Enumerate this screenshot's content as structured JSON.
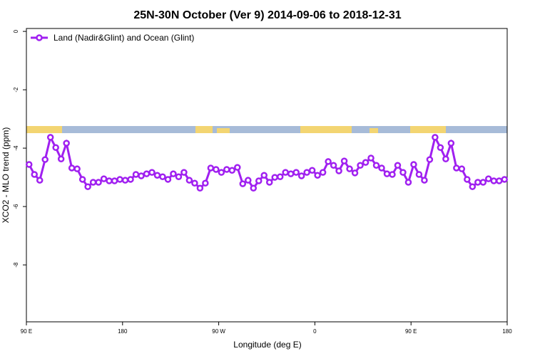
{
  "chart_data": {
    "type": "line",
    "title": "25N-30N October (Ver 9)   2014-09-06 to 2018-12-31",
    "xlabel": "Longitude (deg E)",
    "ylabel": "XCO2 - MLO trend (ppm)",
    "x": [
      92.5,
      97.5,
      102.5,
      107.5,
      112.5,
      117.5,
      122.5,
      127.5,
      132.5,
      137.5,
      142.5,
      147.5,
      152.5,
      157.5,
      162.5,
      167.5,
      172.5,
      177.5,
      182.5,
      187.5,
      192.5,
      197.5,
      202.5,
      207.5,
      212.5,
      217.5,
      222.5,
      227.5,
      232.5,
      237.5,
      242.5,
      247.5,
      252.5,
      257.5,
      262.5,
      267.5,
      272.5,
      277.5,
      282.5,
      287.5,
      292.5,
      297.5,
      302.5,
      307.5,
      312.5,
      317.5,
      322.5,
      327.5,
      332.5,
      337.5,
      342.5,
      347.5,
      352.5,
      357.5,
      362.5,
      367.5,
      372.5,
      377.5,
      382.5,
      387.5,
      392.5,
      397.5,
      402.5,
      407.5,
      412.5,
      417.5,
      422.5,
      427.5,
      432.5,
      437.5,
      442.5,
      447.5,
      452.5,
      457.5,
      462.5,
      467.5,
      472.5,
      477.5,
      482.5,
      487.5,
      492.5,
      497.5,
      502.5,
      507.5,
      512.5,
      517.5,
      522.5,
      527.5,
      532.5,
      537.5
    ],
    "series": [
      {
        "name": "Land (Nadir&Glint) and Ocean (Glint)",
        "color": "#a020f0",
        "values": [
          -4.56,
          -4.9,
          -5.1,
          -4.39,
          -3.63,
          -3.98,
          -4.37,
          -3.83,
          -4.68,
          -4.71,
          -5.07,
          -5.32,
          -5.17,
          -5.17,
          -5.05,
          -5.12,
          -5.12,
          -5.07,
          -5.1,
          -5.07,
          -4.9,
          -4.95,
          -4.88,
          -4.83,
          -4.93,
          -4.98,
          -5.07,
          -4.88,
          -4.98,
          -4.83,
          -5.1,
          -5.2,
          -5.37,
          -5.2,
          -4.68,
          -4.73,
          -4.83,
          -4.73,
          -4.76,
          -4.66,
          -5.22,
          -5.1,
          -5.37,
          -5.12,
          -4.93,
          -5.17,
          -5.0,
          -4.98,
          -4.83,
          -4.88,
          -4.83,
          -4.95,
          -4.83,
          -4.76,
          -4.93,
          -4.83,
          -4.46,
          -4.59,
          -4.78,
          -4.44,
          -4.71,
          -4.85,
          -4.59,
          -4.49,
          -4.34,
          -4.59,
          -4.68,
          -4.88,
          -4.9,
          -4.59,
          -4.83,
          -5.17,
          -4.56,
          -4.9,
          -5.1,
          -4.39,
          -3.63,
          -3.98,
          -4.37,
          -3.83,
          -4.68,
          -4.71,
          -5.07,
          -5.32,
          -5.17,
          -5.17,
          -5.05,
          -5.12,
          -5.12,
          -5.07
        ]
      }
    ],
    "xlim": [
      90,
      540
    ],
    "xticks": [
      {
        "value": 90,
        "label": "90 E"
      },
      {
        "value": 180,
        "label": "180"
      },
      {
        "value": 270,
        "label": "90 W"
      },
      {
        "value": 360,
        "label": "0"
      },
      {
        "value": 450,
        "label": "90 E"
      },
      {
        "value": 540,
        "label": "180"
      }
    ],
    "ylim": [
      -9.95,
      0.1
    ],
    "yticks": [
      0,
      -2,
      -4,
      -6,
      -8
    ],
    "legend": "top-left"
  }
}
